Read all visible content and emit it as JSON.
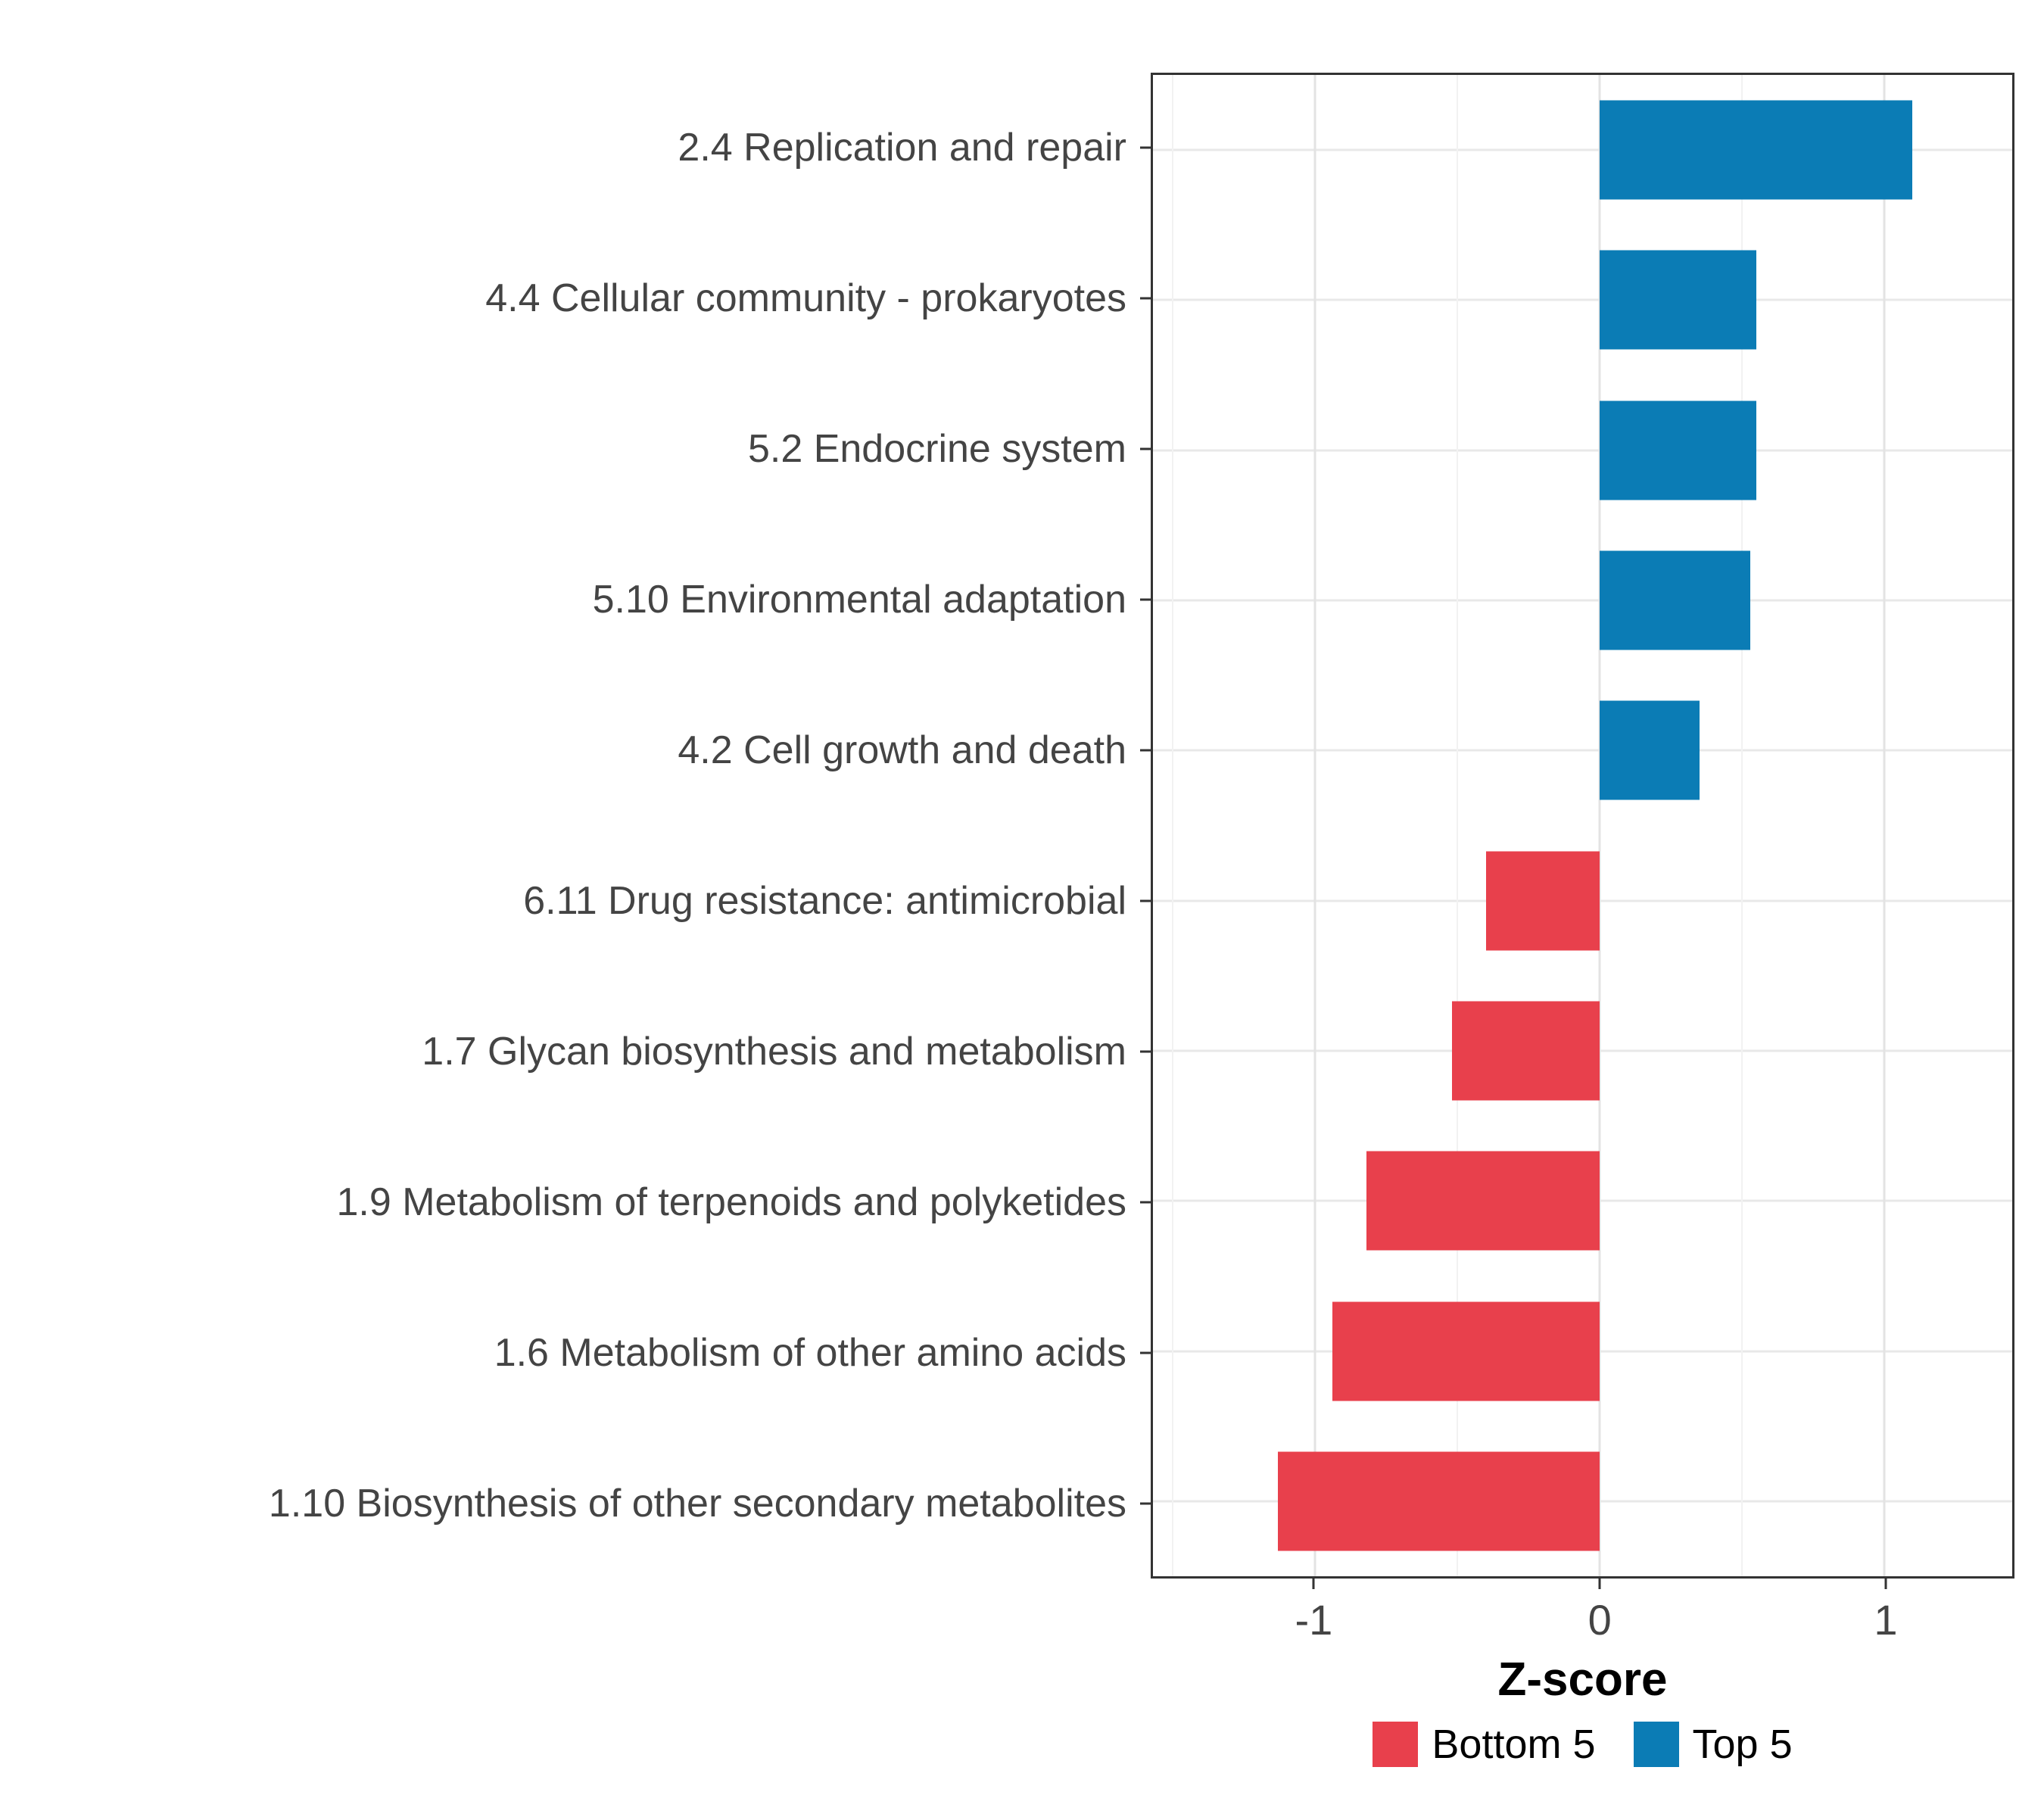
{
  "figure": {
    "background": "#FFFFFF",
    "axis_text_color": "#444444",
    "panel_border_color": "#333333",
    "grid_major_color": "#E3E3E3",
    "grid_minor_color": "#F2F2F2"
  },
  "chart_data": {
    "type": "bar",
    "orientation": "horizontal",
    "title": "",
    "xlabel": "Z-score",
    "ylabel": "",
    "categories": [
      "2.4 Replication and repair",
      "4.4 Cellular community - prokaryotes",
      "5.2 Endocrine system",
      "5.10 Environmental adaptation",
      "4.2 Cell growth and death",
      "6.11 Drug resistance: antimicrobial",
      "1.7 Glycan biosynthesis and metabolism",
      "1.9 Metabolism of terpenoids and polyketides",
      "1.6 Metabolism of other amino acids",
      "1.10 Biosynthesis of other secondary metabolites"
    ],
    "values": [
      1.1,
      0.55,
      0.55,
      0.53,
      0.35,
      -0.4,
      -0.52,
      -0.82,
      -0.94,
      -1.13
    ],
    "groups": [
      "Top 5",
      "Top 5",
      "Top 5",
      "Top 5",
      "Top 5",
      "Bottom 5",
      "Bottom 5",
      "Bottom 5",
      "Bottom 5",
      "Bottom 5"
    ],
    "series_colors": {
      "Top 5": "#0B7CB5",
      "Bottom 5": "#E8404C"
    },
    "xlim": [
      -1.57,
      1.45
    ],
    "x_ticks": [
      -1,
      0,
      1
    ],
    "x_tick_labels": [
      "-1",
      "0",
      "1"
    ],
    "grid": {
      "major_x": [
        -1,
        0,
        1
      ],
      "minor_x": [
        -1.5,
        -0.5,
        0.5
      ],
      "major_y": "per-category"
    },
    "legend_position": "bottom",
    "legend": [
      {
        "label": "Bottom 5",
        "color": "#E8404C"
      },
      {
        "label": "Top 5",
        "color": "#0B7CB5"
      }
    ]
  }
}
